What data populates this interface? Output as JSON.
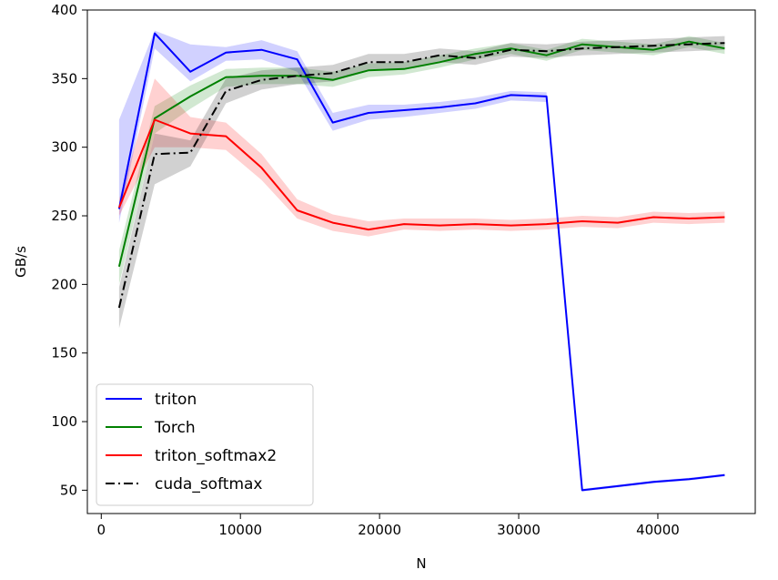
{
  "chart_data": {
    "type": "line",
    "title": "",
    "xlabel": "N",
    "ylabel": "GB/s",
    "xlim": [
      -1000,
      47000
    ],
    "ylim": [
      33,
      400
    ],
    "xticks": [
      0,
      10000,
      20000,
      30000,
      40000
    ],
    "yticks": [
      50,
      100,
      150,
      200,
      250,
      300,
      350,
      400
    ],
    "grid": false,
    "legend_position": "lower-left",
    "x": [
      1280,
      3840,
      6400,
      8960,
      11520,
      14080,
      16640,
      19200,
      21760,
      24320,
      26880,
      29440,
      32000,
      34560,
      37120,
      39680,
      42240,
      44800
    ],
    "series": [
      {
        "name": "triton",
        "color": "#0000ff",
        "style": "solid",
        "values": [
          255,
          383,
          355,
          369,
          371,
          364,
          318,
          325,
          327,
          329,
          332,
          338,
          337,
          50,
          53,
          56,
          58,
          61
        ],
        "lower": [
          245,
          372,
          348,
          363,
          364,
          355,
          312,
          320,
          322,
          325,
          328,
          334,
          333,
          49,
          52,
          55,
          57,
          60
        ],
        "upper": [
          320,
          385,
          375,
          373,
          378,
          370,
          325,
          331,
          331,
          333,
          336,
          341,
          340,
          51,
          54,
          57,
          59,
          62
        ]
      },
      {
        "name": "Torch",
        "color": "#008000",
        "style": "solid",
        "values": [
          213,
          321,
          337,
          351,
          352,
          352,
          349,
          356,
          357,
          362,
          368,
          372,
          367,
          375,
          373,
          371,
          377,
          372
        ],
        "lower": [
          200,
          310,
          328,
          344,
          346,
          346,
          344,
          351,
          353,
          358,
          364,
          368,
          363,
          371,
          369,
          367,
          373,
          368
        ],
        "upper": [
          225,
          330,
          345,
          357,
          358,
          358,
          355,
          361,
          362,
          367,
          372,
          376,
          371,
          379,
          377,
          375,
          381,
          376
        ]
      },
      {
        "name": "triton_softmax2",
        "color": "#ff0000",
        "style": "solid",
        "values": [
          256,
          320,
          310,
          308,
          285,
          254,
          245,
          240,
          244,
          243,
          244,
          243,
          244,
          246,
          245,
          249,
          248,
          249
        ],
        "lower": [
          250,
          300,
          300,
          298,
          276,
          248,
          239,
          235,
          240,
          239,
          240,
          239,
          240,
          242,
          241,
          245,
          244,
          245
        ],
        "upper": [
          262,
          350,
          322,
          318,
          295,
          262,
          251,
          246,
          248,
          248,
          248,
          247,
          248,
          250,
          249,
          253,
          252,
          253
        ]
      },
      {
        "name": "cuda_softmax",
        "color": "#000000",
        "style": "dashdot",
        "values": [
          183,
          295,
          296,
          341,
          349,
          352,
          354,
          362,
          362,
          367,
          365,
          371,
          370,
          372,
          373,
          374,
          375,
          376
        ],
        "lower": [
          168,
          273,
          286,
          332,
          342,
          346,
          348,
          356,
          357,
          362,
          360,
          366,
          365,
          367,
          368,
          369,
          370,
          371
        ],
        "upper": [
          198,
          310,
          305,
          350,
          356,
          358,
          360,
          368,
          368,
          372,
          370,
          376,
          375,
          377,
          378,
          379,
          380,
          381
        ]
      }
    ]
  }
}
